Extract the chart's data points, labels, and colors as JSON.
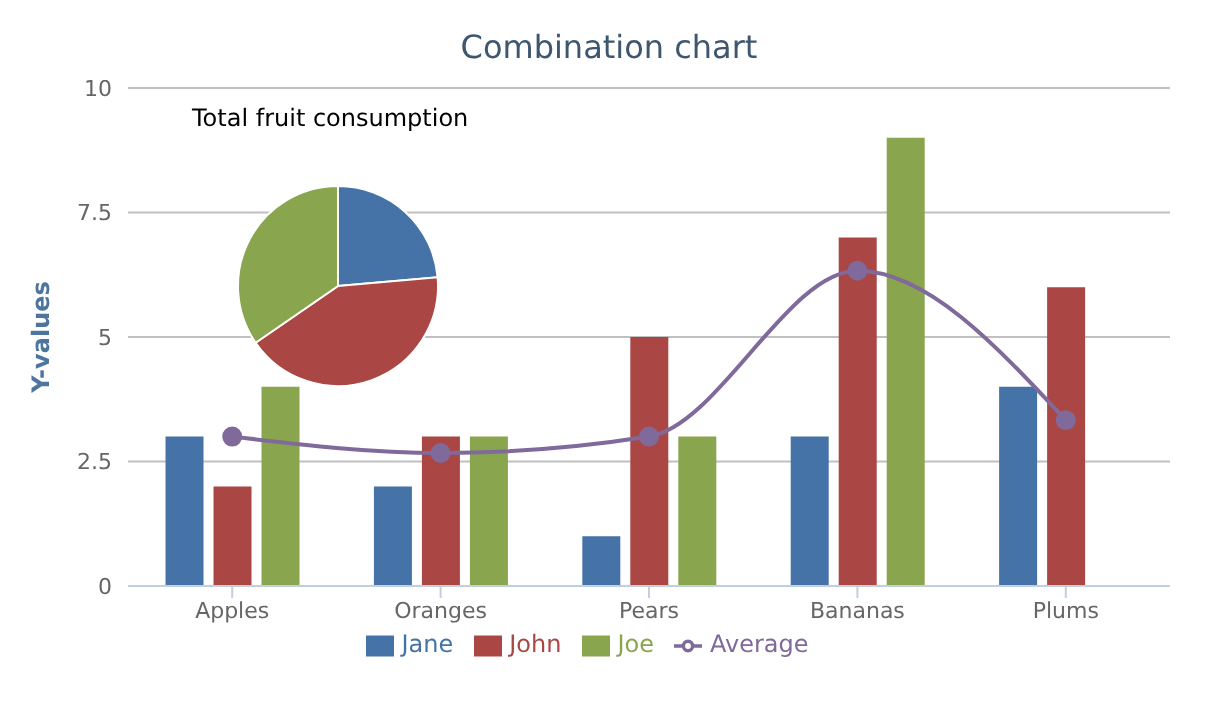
{
  "chart_data": [
    {
      "type": "bar",
      "title": "Combination chart",
      "ylabel": "Y-values",
      "categories": [
        "Apples",
        "Oranges",
        "Pears",
        "Bananas",
        "Plums"
      ],
      "series": [
        {
          "name": "Jane",
          "color": "#4572a7",
          "values": [
            3,
            2,
            1,
            3,
            4
          ]
        },
        {
          "name": "John",
          "color": "#aa4643",
          "values": [
            2,
            3,
            5,
            7,
            6
          ]
        },
        {
          "name": "Joe",
          "color": "#89a54e",
          "values": [
            4,
            3,
            3,
            9,
            0
          ]
        },
        {
          "name": "Average",
          "type": "line",
          "color": "#80699b",
          "values": [
            3,
            2.67,
            3,
            6.33,
            3.33
          ]
        }
      ],
      "ylim": [
        0,
        10
      ],
      "yticks": [
        0,
        2.5,
        5,
        7.5,
        10
      ],
      "grid": "y",
      "legend": "bottom",
      "marker": "circle"
    },
    {
      "type": "pie",
      "title": "Total fruit consumption",
      "categories": [
        null,
        null,
        null
      ],
      "values": [
        23.6,
        41.8,
        34.6
      ],
      "colors": [
        "#4572a7",
        "#aa4643",
        "#89a54e"
      ]
    }
  ]
}
